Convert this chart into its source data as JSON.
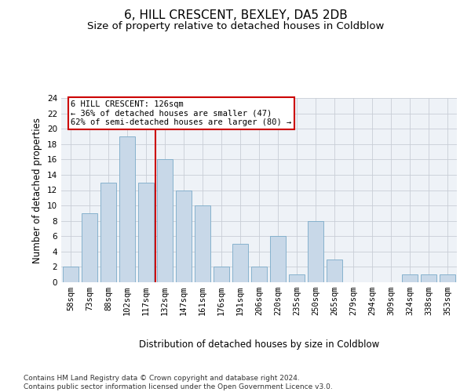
{
  "title": "6, HILL CRESCENT, BEXLEY, DA5 2DB",
  "subtitle": "Size of property relative to detached houses in Coldblow",
  "xlabel": "Distribution of detached houses by size in Coldblow",
  "ylabel": "Number of detached properties",
  "bar_color": "#c8d8e8",
  "bar_edge_color": "#7aaac8",
  "categories": [
    "58sqm",
    "73sqm",
    "88sqm",
    "102sqm",
    "117sqm",
    "132sqm",
    "147sqm",
    "161sqm",
    "176sqm",
    "191sqm",
    "206sqm",
    "220sqm",
    "235sqm",
    "250sqm",
    "265sqm",
    "279sqm",
    "294sqm",
    "309sqm",
    "324sqm",
    "338sqm",
    "353sqm"
  ],
  "values": [
    2,
    9,
    13,
    19,
    13,
    16,
    12,
    10,
    2,
    5,
    2,
    6,
    1,
    8,
    3,
    0,
    0,
    0,
    1,
    1,
    1
  ],
  "ylim": [
    0,
    24
  ],
  "yticks": [
    0,
    2,
    4,
    6,
    8,
    10,
    12,
    14,
    16,
    18,
    20,
    22,
    24
  ],
  "vline_x": 4.5,
  "vline_color": "#cc0000",
  "annotation_text": "6 HILL CRESCENT: 126sqm\n← 36% of detached houses are smaller (47)\n62% of semi-detached houses are larger (80) →",
  "annotation_box_color": "#ffffff",
  "annotation_box_edge": "#cc0000",
  "footer": "Contains HM Land Registry data © Crown copyright and database right 2024.\nContains public sector information licensed under the Open Government Licence v3.0.",
  "background_color": "#eef2f7",
  "title_fontsize": 11,
  "subtitle_fontsize": 9.5,
  "axis_ylabel_fontsize": 8.5,
  "xlabel_fontsize": 8.5,
  "tick_fontsize": 7.5,
  "footer_fontsize": 6.5,
  "annot_fontsize": 7.5
}
